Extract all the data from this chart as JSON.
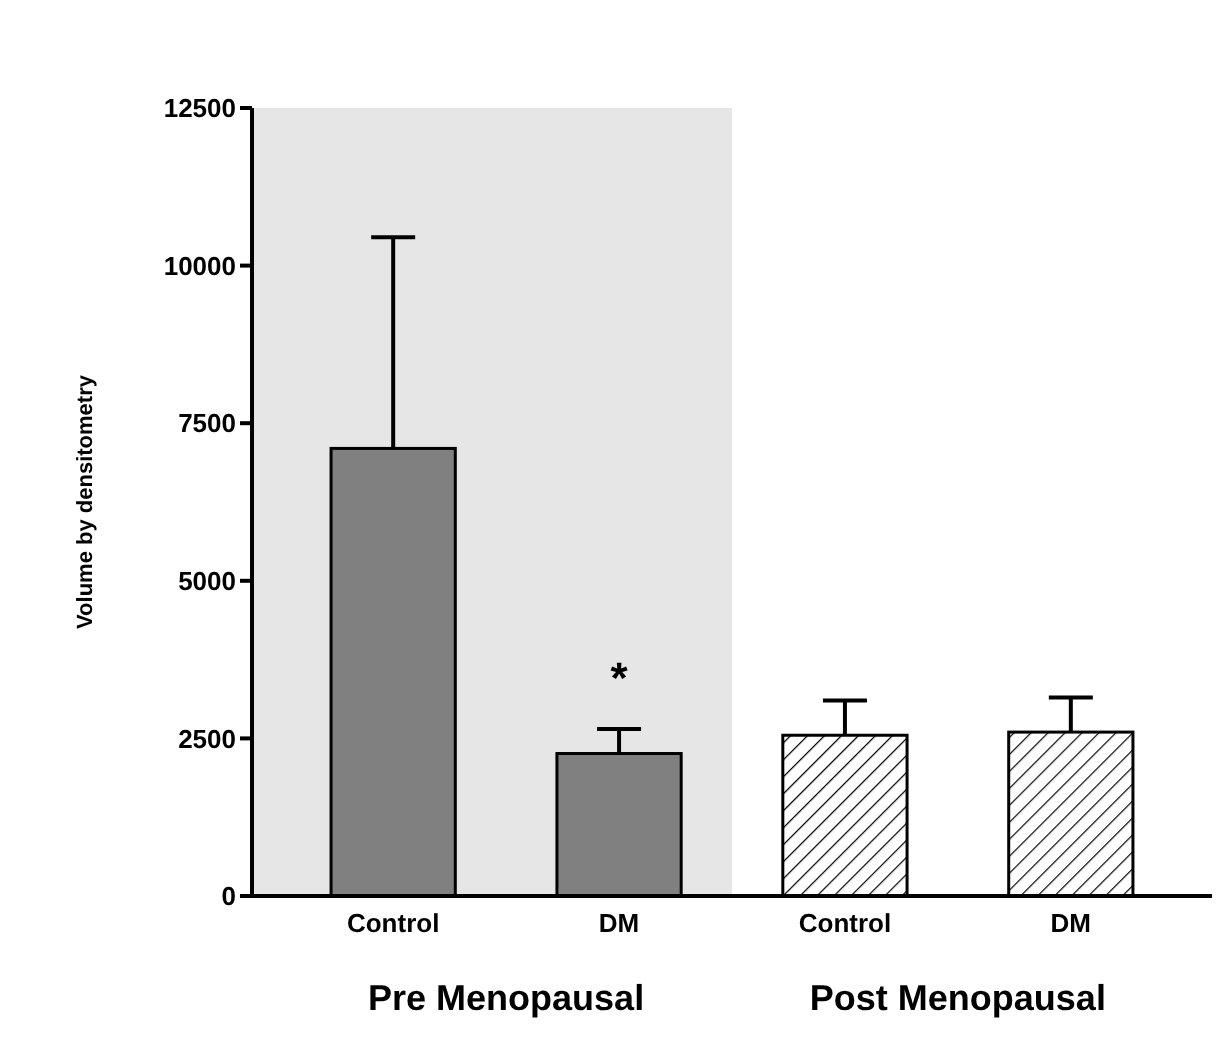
{
  "chart_data": {
    "type": "bar",
    "ylabel": "Volume by densitometry",
    "categories": [
      "Control",
      "DM",
      "Control",
      "DM"
    ],
    "series": [
      {
        "color": "#808080",
        "values": [
          7100,
          2260,
          null,
          null
        ],
        "errors": [
          [
            7100,
            10450
          ],
          [
            2260,
            2650
          ],
          null,
          null
        ]
      },
      {
        "color": "#000000",
        "values": [
          null,
          null,
          2550,
          2600
        ],
        "errors": [
          null,
          null,
          [
            2550,
            3100
          ],
          [
            2600,
            3150
          ]
        ]
      }
    ],
    "ylim": [
      0,
      12500
    ],
    "yticks": [
      0,
      2500,
      5000,
      7500,
      10000,
      12500
    ],
    "annotations": [
      "*",
      "Pre Menopausal",
      "Post Menopausal"
    ]
  }
}
